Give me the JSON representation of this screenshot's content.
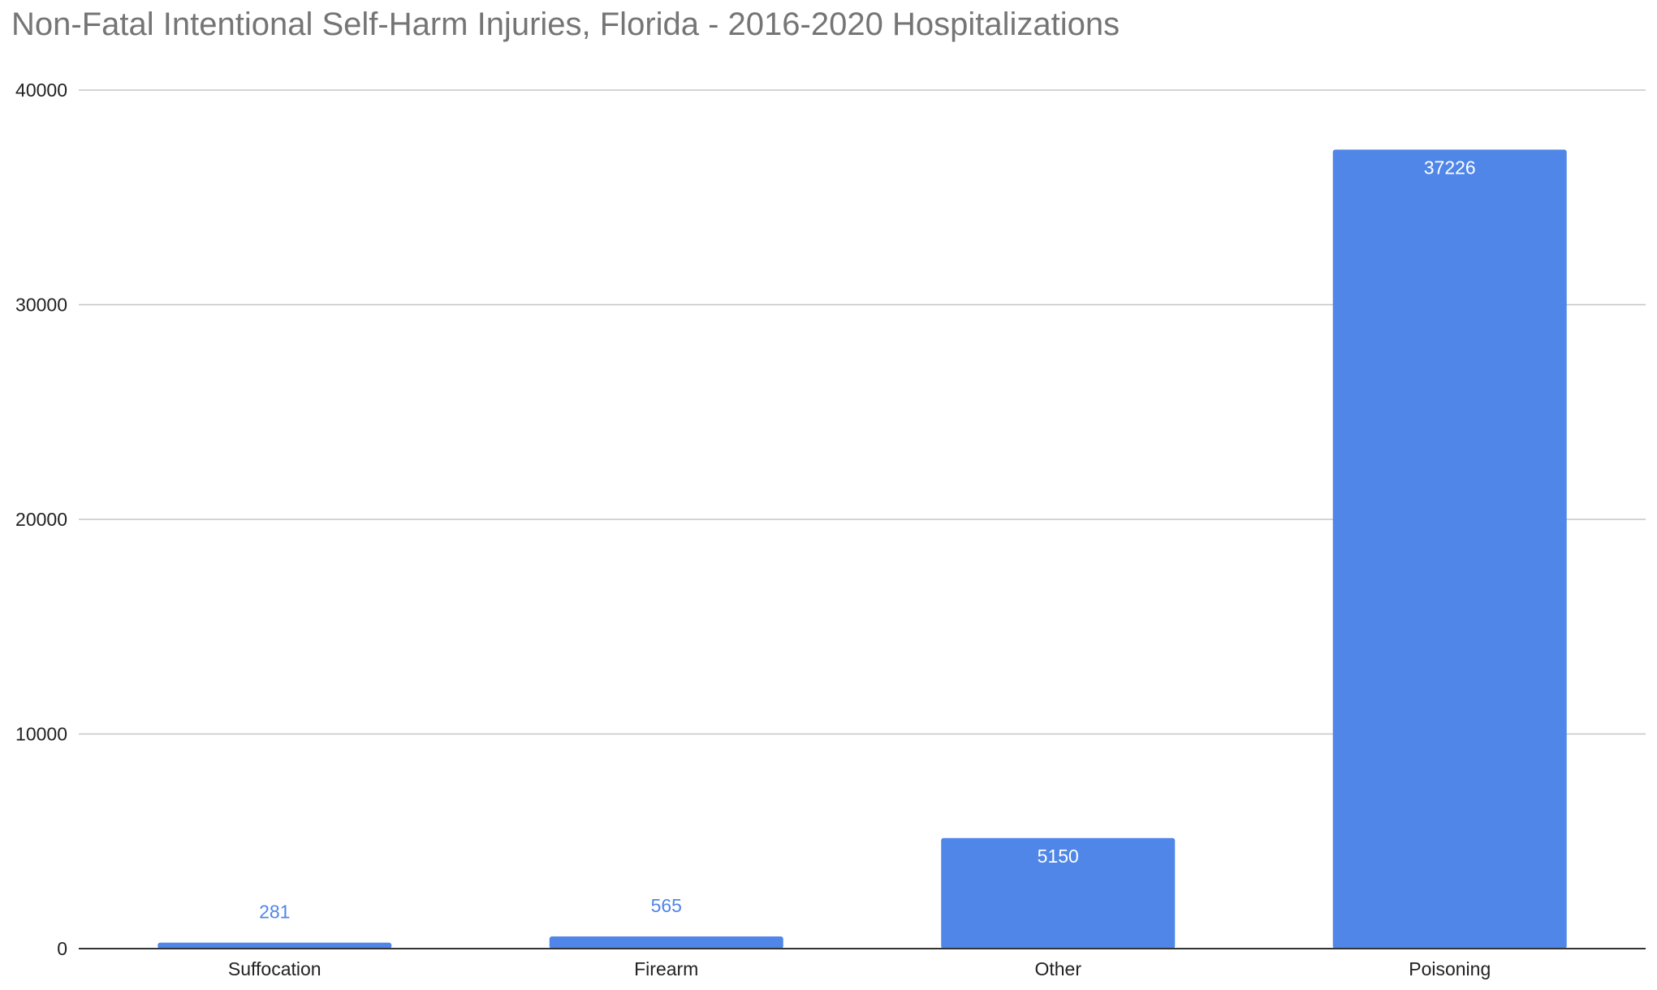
{
  "chart_data": {
    "type": "bar",
    "title": "Non-Fatal Intentional Self-Harm Injuries, Florida  - 2016-2020 Hospitalizations",
    "categories": [
      "Suffocation",
      "Firearm",
      "Other",
      "Poisoning"
    ],
    "values": [
      281,
      565,
      5150,
      37226
    ],
    "value_labels": [
      "281",
      "565",
      "5150",
      "37226"
    ],
    "xlabel": "",
    "ylabel": "",
    "ylim": [
      0,
      40000
    ],
    "yticks": [
      0,
      10000,
      20000,
      30000,
      40000
    ],
    "ytick_labels": [
      "0",
      "10000",
      "20000",
      "30000",
      "40000"
    ],
    "grid": true,
    "legend": "none",
    "colors": {
      "bar": "#4f86e8",
      "label_inside": "#ffffff",
      "label_outside": "#4f86e8",
      "grid": "#c6c6c6",
      "axis": "#333333",
      "title": "#757575",
      "text": "#222222"
    }
  }
}
